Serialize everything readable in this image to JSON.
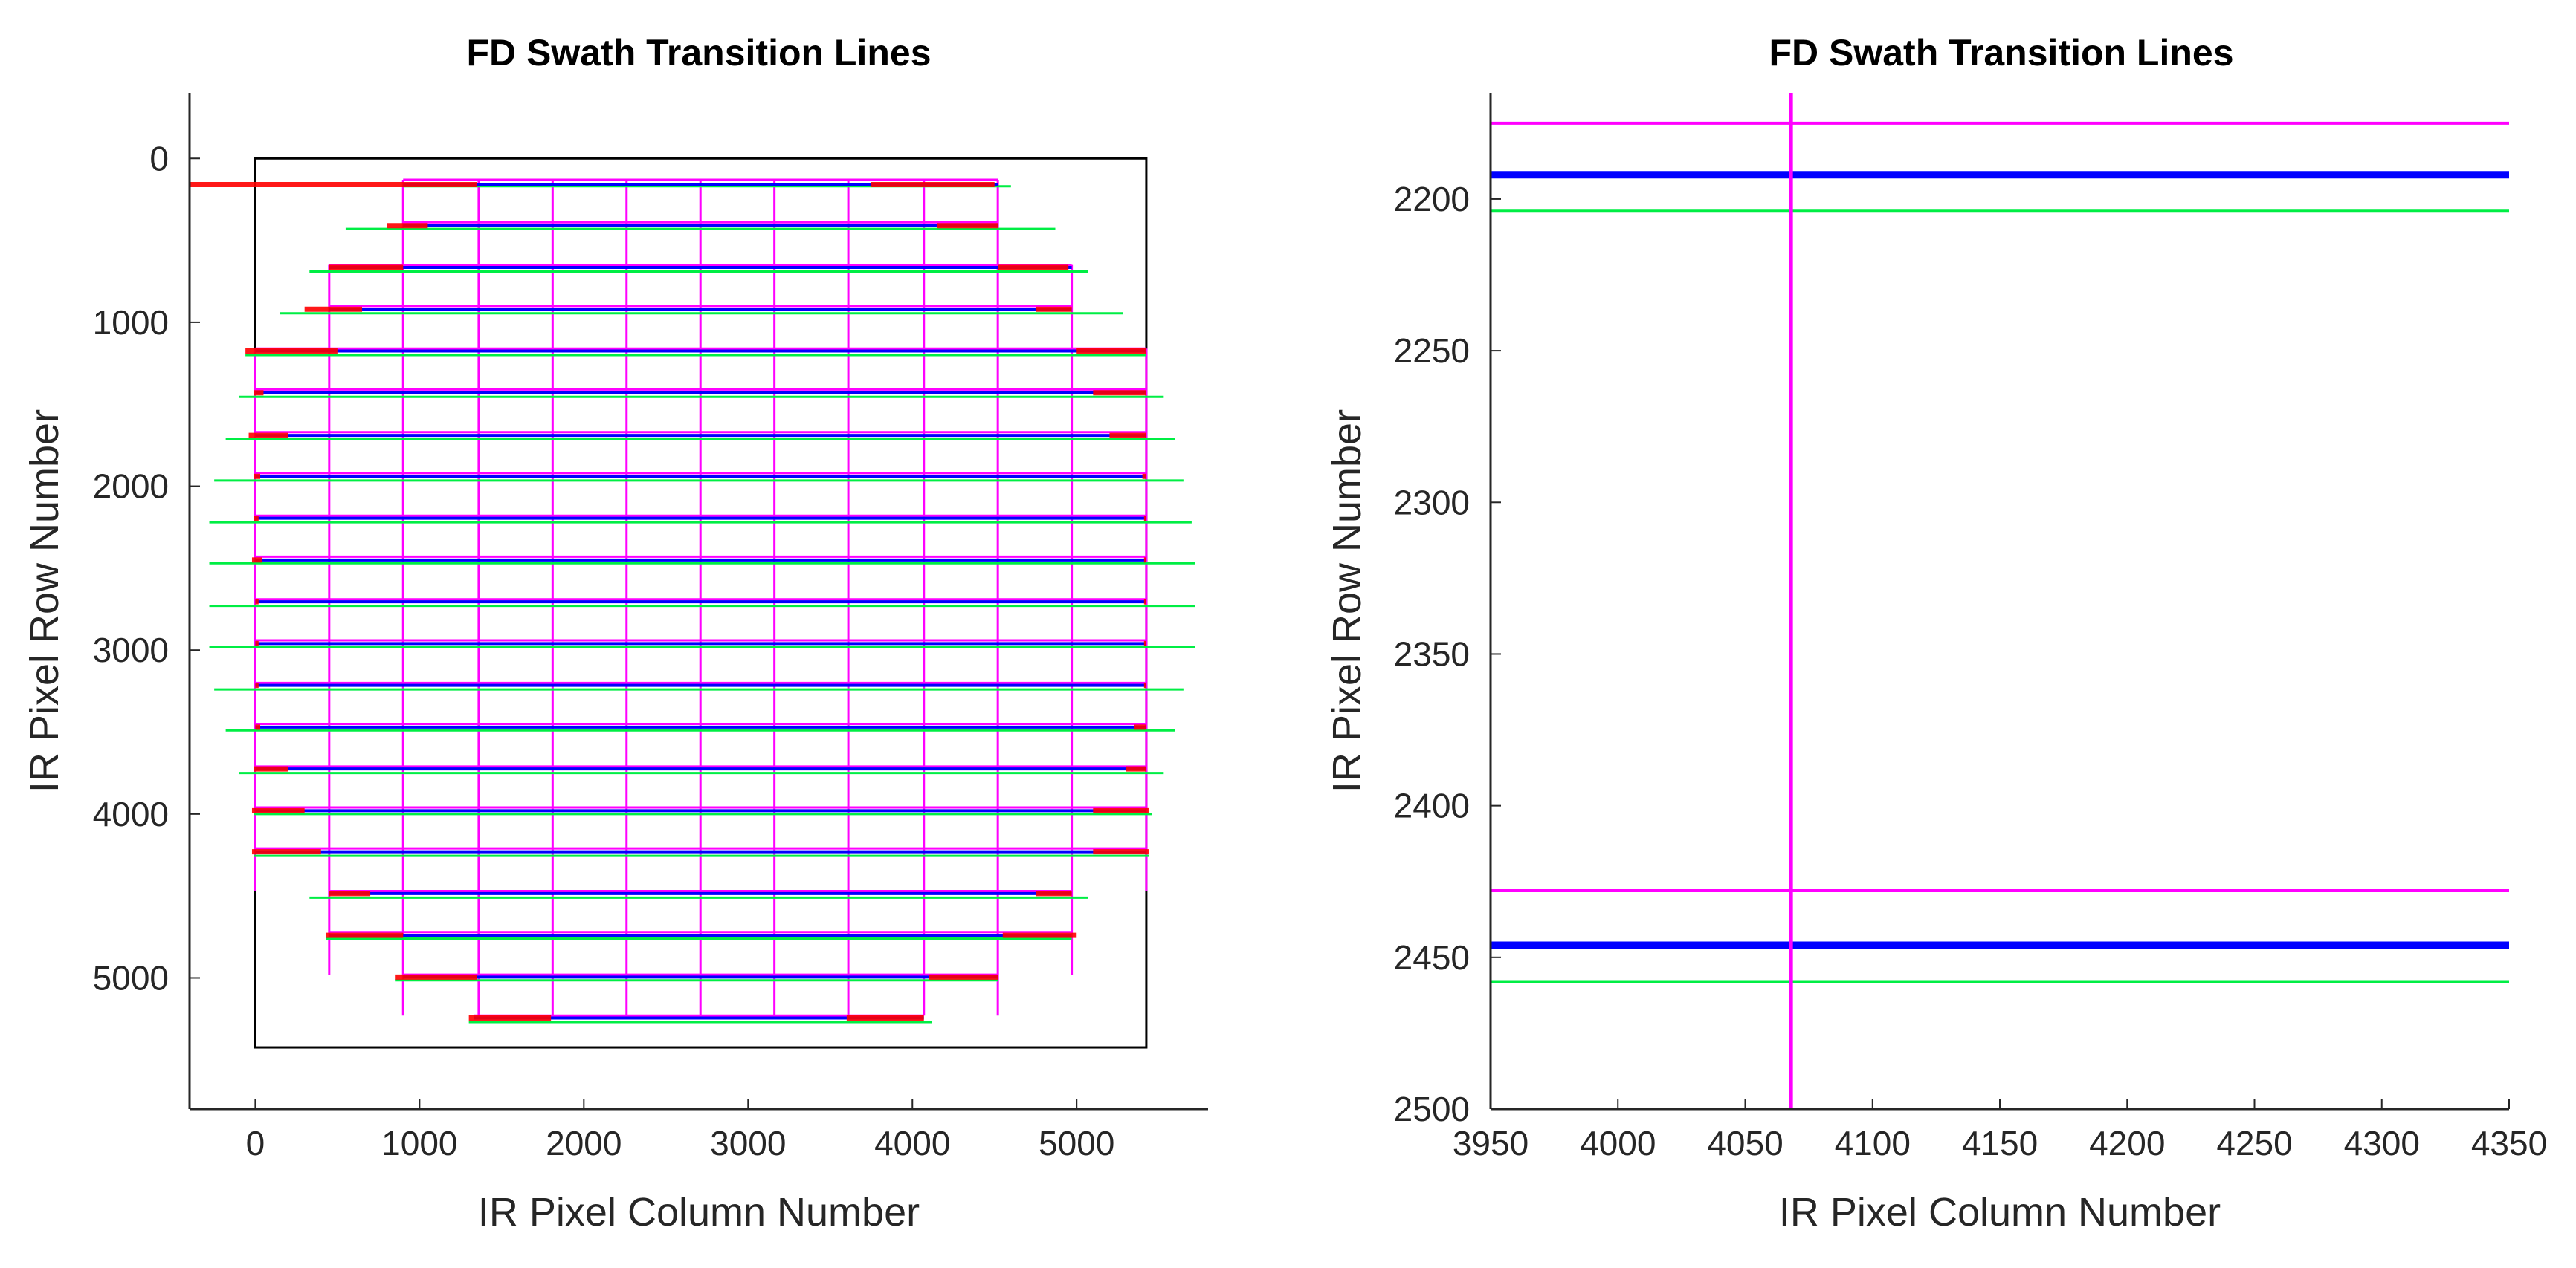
{
  "chart_data": [
    {
      "type": "line",
      "title": "FD Swath Transition Lines",
      "xlabel": "IR Pixel Column Number",
      "ylabel": "IR Pixel Row Number",
      "xlim": [
        -400,
        5800
      ],
      "ylim": [
        5800,
        -400
      ],
      "xticks": [
        0,
        1000,
        2000,
        3000,
        4000,
        5000
      ],
      "yticks": [
        0,
        1000,
        2000,
        3000,
        4000,
        5000
      ],
      "xtick_labels": [
        "0",
        "1000",
        "2000",
        "3000",
        "4000",
        "5000"
      ],
      "ytick_labels": [
        "0",
        "1000",
        "2000",
        "3000",
        "4000",
        "5000"
      ],
      "frame_box": {
        "x": [
          0,
          5424
        ],
        "y": [
          0,
          5424
        ]
      },
      "colors": {
        "magenta": "#ff00ff",
        "green": "#00ee44",
        "blue": "#0000ff",
        "red": "#ff0000",
        "frame": "#000000"
      },
      "swath_rows": [
        {
          "magenta_y": 130,
          "blue_y": 160,
          "green_y": 170,
          "magenta_x": [
            900,
            4520
          ],
          "green_x": [
            900,
            4600
          ],
          "red_left": [
            -400,
            1350
          ],
          "red_right": [
            3750,
            4500
          ]
        },
        {
          "magenta_y": 390,
          "blue_y": 410,
          "green_y": 430,
          "magenta_x": [
            900,
            4520
          ],
          "green_x": [
            550,
            4870
          ],
          "red_left": [
            800,
            1050
          ],
          "red_right": [
            4150,
            4520
          ]
        },
        {
          "magenta_y": 650,
          "blue_y": 665,
          "green_y": 690,
          "magenta_x": [
            450,
            4970
          ],
          "green_x": [
            330,
            5070
          ],
          "red_left": [
            450,
            900
          ],
          "red_right": [
            4520,
            4950
          ]
        },
        {
          "magenta_y": 900,
          "blue_y": 920,
          "green_y": 945,
          "magenta_x": [
            450,
            4970
          ],
          "green_x": [
            150,
            5280
          ],
          "red_left": [
            300,
            650
          ],
          "red_right": [
            4750,
            4970
          ]
        },
        {
          "magenta_y": 1160,
          "blue_y": 1175,
          "green_y": 1200,
          "magenta_x": [
            0,
            5424
          ],
          "green_x": [
            -60,
            5424
          ],
          "red_left": [
            -60,
            500
          ],
          "red_right": [
            5000,
            5424
          ]
        },
        {
          "magenta_y": 1410,
          "blue_y": 1430,
          "green_y": 1455,
          "magenta_x": [
            0,
            5424
          ],
          "green_x": [
            -100,
            5530
          ],
          "red_left": [
            -10,
            50
          ],
          "red_right": [
            5100,
            5424
          ]
        },
        {
          "magenta_y": 1670,
          "blue_y": 1690,
          "green_y": 1710,
          "magenta_x": [
            0,
            5424
          ],
          "green_x": [
            -180,
            5600
          ],
          "red_left": [
            -40,
            200
          ],
          "red_right": [
            5200,
            5424
          ]
        },
        {
          "magenta_y": 1920,
          "blue_y": 1940,
          "green_y": 1965,
          "magenta_x": [
            0,
            5424
          ],
          "green_x": [
            -250,
            5650
          ],
          "red_left": [
            -10,
            30
          ],
          "red_right": [
            5400,
            5424
          ]
        },
        {
          "magenta_y": 2180,
          "blue_y": 2195,
          "green_y": 2220,
          "magenta_x": [
            0,
            5424
          ],
          "green_x": [
            -280,
            5700
          ],
          "red_left": [
            -10,
            20
          ],
          "red_right": [
            5410,
            5424
          ]
        },
        {
          "magenta_y": 2430,
          "blue_y": 2450,
          "green_y": 2470,
          "magenta_x": [
            0,
            5424
          ],
          "green_x": [
            -280,
            5720
          ],
          "red_left": [
            -20,
            40
          ],
          "red_right": [
            5410,
            5424
          ]
        },
        {
          "magenta_y": 2690,
          "blue_y": 2705,
          "green_y": 2730,
          "magenta_x": [
            0,
            5424
          ],
          "green_x": [
            -280,
            5720
          ],
          "red_left": [
            0,
            20
          ],
          "red_right": [
            5410,
            5424
          ]
        },
        {
          "magenta_y": 2940,
          "blue_y": 2960,
          "green_y": 2980,
          "magenta_x": [
            0,
            5424
          ],
          "green_x": [
            -280,
            5720
          ],
          "red_left": [
            0,
            20
          ],
          "red_right": [
            5410,
            5424
          ]
        },
        {
          "magenta_y": 3200,
          "blue_y": 3215,
          "green_y": 3240,
          "magenta_x": [
            0,
            5424
          ],
          "green_x": [
            -250,
            5650
          ],
          "red_left": [
            0,
            20
          ],
          "red_right": [
            5410,
            5424
          ]
        },
        {
          "magenta_y": 3450,
          "blue_y": 3470,
          "green_y": 3490,
          "magenta_x": [
            0,
            5424
          ],
          "green_x": [
            -180,
            5600
          ],
          "red_left": [
            0,
            30
          ],
          "red_right": [
            5350,
            5424
          ]
        },
        {
          "magenta_y": 3710,
          "blue_y": 3725,
          "green_y": 3750,
          "magenta_x": [
            0,
            5424
          ],
          "green_x": [
            -100,
            5530
          ],
          "red_left": [
            -10,
            200
          ],
          "red_right": [
            5300,
            5424
          ]
        },
        {
          "magenta_y": 3960,
          "blue_y": 3980,
          "green_y": 4000,
          "magenta_x": [
            0,
            5424
          ],
          "green_x": [
            -10,
            5460
          ],
          "red_left": [
            -20,
            300
          ],
          "red_right": [
            5100,
            5440
          ]
        },
        {
          "magenta_y": 4210,
          "blue_y": 4230,
          "green_y": 4255,
          "magenta_x": [
            0,
            5424
          ],
          "green_x": [
            -10,
            5440
          ],
          "red_left": [
            -20,
            400
          ],
          "red_right": [
            5100,
            5440
          ]
        },
        {
          "magenta_y": 4470,
          "blue_y": 4485,
          "green_y": 4510,
          "magenta_x": [
            450,
            4970
          ],
          "green_x": [
            330,
            5070
          ],
          "red_left": [
            450,
            700
          ],
          "red_right": [
            4750,
            4970
          ]
        },
        {
          "magenta_y": 4720,
          "blue_y": 4740,
          "green_y": 4760,
          "magenta_x": [
            450,
            4970
          ],
          "green_x": [
            430,
            4970
          ],
          "red_left": [
            430,
            900
          ],
          "red_right": [
            4550,
            5000
          ]
        },
        {
          "magenta_y": 4980,
          "blue_y": 4995,
          "green_y": 5015,
          "magenta_x": [
            900,
            4520
          ],
          "green_x": [
            850,
            4520
          ],
          "red_left": [
            850,
            1350
          ],
          "red_right": [
            4100,
            4520
          ]
        },
        {
          "magenta_y": 5230,
          "blue_y": 5245,
          "green_y": 5270,
          "magenta_x": [
            1330,
            4070
          ],
          "green_x": [
            1300,
            4120
          ],
          "red_left": [
            1300,
            1800
          ],
          "red_right": [
            3600,
            4070
          ]
        }
      ],
      "magenta_verticals": [
        {
          "x": 0,
          "y": [
            1160,
            4470
          ]
        },
        {
          "x": 450,
          "y": [
            650,
            4980
          ]
        },
        {
          "x": 900,
          "y": [
            130,
            5230
          ]
        },
        {
          "x": 1360,
          "y": [
            130,
            5230
          ]
        },
        {
          "x": 1810,
          "y": [
            130,
            5230
          ]
        },
        {
          "x": 2260,
          "y": [
            130,
            5230
          ]
        },
        {
          "x": 2710,
          "y": [
            130,
            5230
          ]
        },
        {
          "x": 3160,
          "y": [
            130,
            5230
          ]
        },
        {
          "x": 3610,
          "y": [
            130,
            5230
          ]
        },
        {
          "x": 4070,
          "y": [
            130,
            5230
          ]
        },
        {
          "x": 4520,
          "y": [
            130,
            5230
          ]
        },
        {
          "x": 4970,
          "y": [
            650,
            4980
          ]
        },
        {
          "x": 5424,
          "y": [
            1160,
            4470
          ]
        }
      ]
    },
    {
      "type": "line",
      "title": "FD Swath Transition Lines",
      "xlabel": "IR Pixel Column Number",
      "ylabel": "IR Pixel Row Number",
      "xlim": [
        3950,
        4350
      ],
      "ylim": [
        2500,
        2165
      ],
      "xticks": [
        3950,
        4000,
        4050,
        4100,
        4150,
        4200,
        4250,
        4300,
        4350
      ],
      "yticks": [
        2200,
        2250,
        2300,
        2350,
        2400,
        2450,
        2500
      ],
      "xtick_labels": [
        "3950",
        "4000",
        "4050",
        "4100",
        "4150",
        "4200",
        "4250",
        "4300",
        "4350"
      ],
      "ytick_labels": [
        "2200",
        "2250",
        "2300",
        "2350",
        "2400",
        "2450",
        "2500"
      ],
      "colors": {
        "magenta": "#ff00ff",
        "green": "#00ee44",
        "blue": "#0000ff"
      },
      "horizontal_lines": [
        {
          "color": "magenta",
          "y": 2175,
          "x": [
            3950,
            4350
          ]
        },
        {
          "color": "blue",
          "y": 2192,
          "x": [
            3950,
            4350
          ]
        },
        {
          "color": "green",
          "y": 2204,
          "x": [
            3950,
            4350
          ]
        },
        {
          "color": "magenta",
          "y": 2428,
          "x": [
            3950,
            4350
          ]
        },
        {
          "color": "blue",
          "y": 2446,
          "x": [
            3950,
            4350
          ]
        },
        {
          "color": "green",
          "y": 2458,
          "x": [
            3950,
            4350
          ]
        }
      ],
      "vertical_lines": [
        {
          "color": "magenta",
          "x": 4068,
          "y": [
            2165,
            2500
          ]
        }
      ]
    }
  ]
}
